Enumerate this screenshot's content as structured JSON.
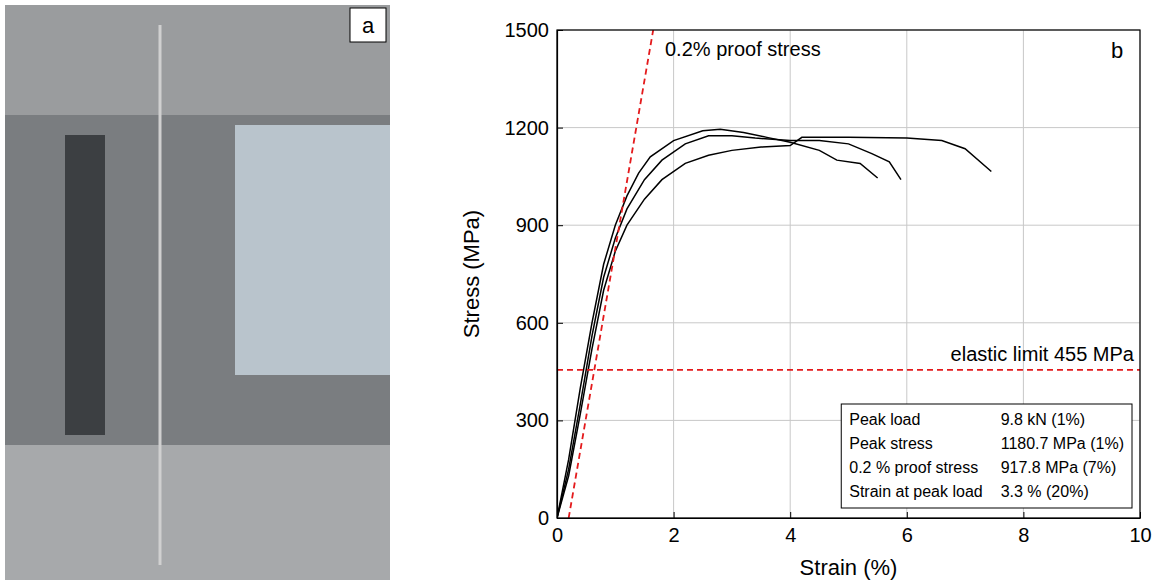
{
  "photo": {
    "label": "a"
  },
  "chart_data": {
    "type": "line",
    "panel_label": "b",
    "x_label": "Strain (%)",
    "y_label": "Stress (MPa)",
    "xlim": [
      0,
      10
    ],
    "xticks": [
      0,
      2,
      4,
      6,
      8,
      10
    ],
    "ylim": [
      0,
      1500
    ],
    "yticks": [
      0,
      300,
      600,
      900,
      1200,
      1500
    ],
    "grid": true,
    "series": [
      {
        "color": "#000000",
        "line_style": "solid",
        "x": [
          0,
          0.2,
          0.4,
          0.6,
          0.8,
          1.0,
          1.2,
          1.4,
          1.6,
          2.0,
          2.5,
          2.8,
          3.2,
          3.6,
          4.0,
          4.5,
          4.8,
          5.2,
          5.5
        ],
        "values": [
          0,
          180,
          400,
          600,
          780,
          900,
          990,
          1060,
          1110,
          1160,
          1190,
          1195,
          1185,
          1170,
          1155,
          1130,
          1100,
          1090,
          1045
        ]
      },
      {
        "color": "#000000",
        "line_style": "solid",
        "x": [
          0,
          0.2,
          0.4,
          0.6,
          0.8,
          1.0,
          1.2,
          1.5,
          1.8,
          2.2,
          2.6,
          3.0,
          3.4,
          4.0,
          4.5,
          5.0,
          5.4,
          5.7,
          5.9
        ],
        "values": [
          0,
          150,
          350,
          560,
          740,
          860,
          950,
          1040,
          1100,
          1150,
          1175,
          1175,
          1168,
          1160,
          1160,
          1150,
          1120,
          1095,
          1040
        ]
      },
      {
        "color": "#000000",
        "line_style": "solid",
        "x": [
          0,
          0.2,
          0.4,
          0.6,
          0.8,
          1.0,
          1.2,
          1.5,
          1.8,
          2.2,
          2.6,
          3.0,
          3.5,
          4.0,
          4.2,
          5.0,
          6.0,
          6.6,
          7.0,
          7.45
        ],
        "values": [
          0,
          130,
          320,
          520,
          700,
          820,
          900,
          980,
          1040,
          1090,
          1115,
          1130,
          1140,
          1145,
          1170,
          1170,
          1168,
          1160,
          1135,
          1065
        ]
      },
      {
        "color": "#e41a1c",
        "line_style": "dashed",
        "x": [
          0.2,
          1.65
        ],
        "values": [
          0,
          1500
        ]
      },
      {
        "color": "#e41a1c",
        "line_style": "dashed",
        "x": [
          0,
          10
        ],
        "values": [
          455,
          455
        ]
      }
    ],
    "annotations": [
      "0.2% proof stress",
      "elastic limit 455 MPa"
    ],
    "summary_table": [
      [
        "Peak load",
        "9.8 kN (1%)"
      ],
      [
        "Peak stress",
        "1180.7 MPa (1%)"
      ],
      [
        "0.2 % proof stress",
        "917.8 MPa (7%)"
      ],
      [
        "Strain at peak load",
        "3.3 % (20%)"
      ]
    ]
  }
}
